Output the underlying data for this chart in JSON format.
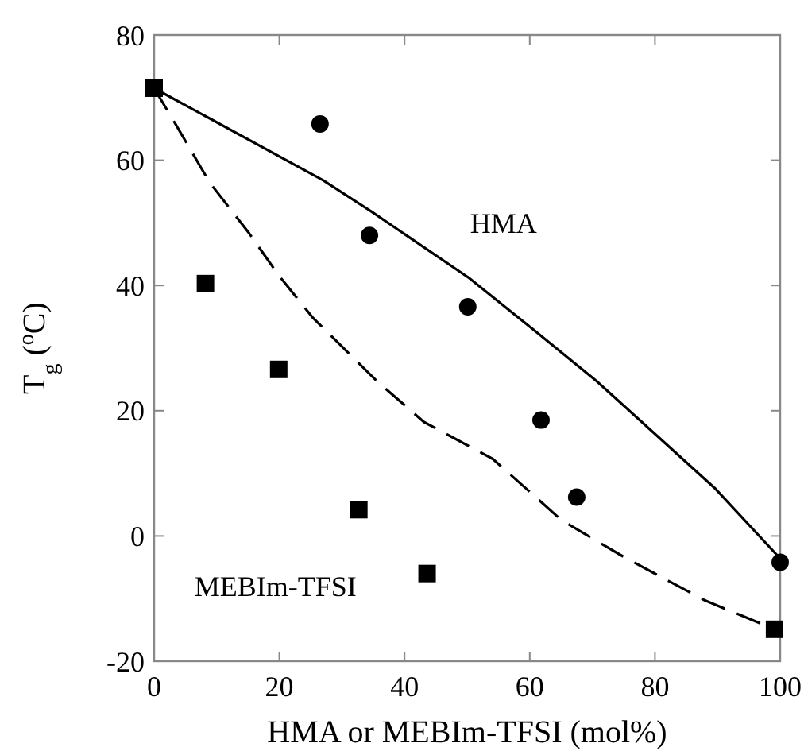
{
  "chart_data": {
    "type": "scatter",
    "xlabel": "HMA or MEBIm-TFSI (mol%)",
    "ylabel": "T$_{g}$ ($^{o}$C)",
    "xlim": [
      0,
      100
    ],
    "xticks": [
      0,
      20,
      40,
      60,
      80,
      100
    ],
    "ylim": [
      -20,
      80
    ],
    "yticks": [
      -20,
      0,
      20,
      40,
      60,
      80
    ],
    "grid": false,
    "series": [
      {
        "marker": "circle",
        "color": "#000000",
        "x": [
          26.5,
          34.4,
          50.1,
          61.8,
          67.5,
          100
        ],
        "values": [
          65.8,
          48,
          36.6,
          18.5,
          6.2,
          -4.2
        ]
      },
      {
        "marker": "square",
        "color": "#000000",
        "x": [
          0,
          8.2,
          19.9,
          32.7,
          43.6,
          99.1
        ],
        "values": [
          71.5,
          40.3,
          26.6,
          4.2,
          -6,
          -14.9
        ]
      },
      {
        "type": "line",
        "marker": "none",
        "line_style": "solid",
        "color": "#000000",
        "x": [
          0,
          27,
          34.7,
          50.3,
          60.9,
          70.6,
          80,
          89.7,
          100
        ],
        "values": [
          71.5,
          56.8,
          51.8,
          41.2,
          32.7,
          24.8,
          16.3,
          7.5,
          -3.6
        ]
      },
      {
        "type": "line",
        "marker": "none",
        "line_style": "dashed",
        "color": "#000000",
        "x": [
          0,
          3.4,
          8.9,
          15.2,
          19.9,
          25.4,
          35.5,
          43.1,
          54.1,
          65.1,
          75.3,
          88,
          99.1
        ],
        "values": [
          71.5,
          65.8,
          56.4,
          48.3,
          41.6,
          34.8,
          24.8,
          18.2,
          12.3,
          2.5,
          -3.5,
          -10.3,
          -14.9
        ]
      }
    ],
    "annotations": [
      "HMA",
      "MEBIm-TFSI"
    ]
  }
}
